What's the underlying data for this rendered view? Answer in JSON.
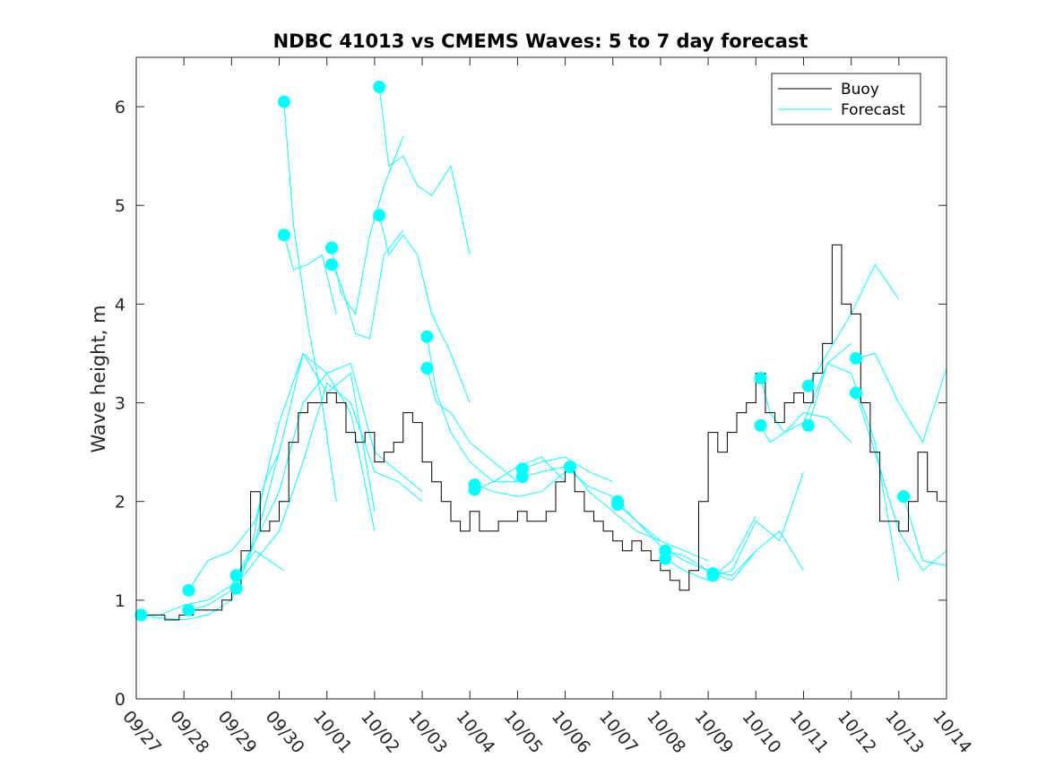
{
  "chart_data": {
    "type": "line",
    "title": "NDBC 41013 vs CMEMS Waves: 5 to 7 day forecast",
    "xlabel": "",
    "ylabel": "Wave height, m",
    "xlim": [
      0,
      17
    ],
    "ylim": [
      0,
      6.5
    ],
    "x_ticks": [
      0,
      1,
      2,
      3,
      4,
      5,
      6,
      7,
      8,
      9,
      10,
      11,
      12,
      13,
      14,
      15,
      16,
      17
    ],
    "x_tick_labels": [
      "09/27",
      "09/28",
      "09/29",
      "09/30",
      "10/01",
      "10/02",
      "10/03",
      "10/04",
      "10/05",
      "10/06",
      "10/07",
      "10/08",
      "10/09",
      "10/10",
      "10/11",
      "10/12",
      "10/13",
      "10/14"
    ],
    "y_ticks": [
      0,
      1,
      2,
      3,
      4,
      5,
      6
    ],
    "y_tick_labels": [
      "0",
      "1",
      "2",
      "3",
      "4",
      "5",
      "6"
    ],
    "legend": {
      "placement": "top-right",
      "entries": [
        {
          "label": "Buoy",
          "color": "#000000"
        },
        {
          "label": "Forecast",
          "color": "#00ffff"
        }
      ]
    },
    "colors": {
      "buoy": "#000000",
      "forecast": "#00ffff"
    },
    "buoy": {
      "name": "Buoy",
      "x": [
        0,
        0.3,
        0.6,
        0.9,
        1.2,
        1.5,
        1.8,
        2.0,
        2.2,
        2.4,
        2.6,
        2.8,
        3.0,
        3.2,
        3.4,
        3.6,
        3.8,
        4.0,
        4.2,
        4.4,
        4.6,
        4.8,
        5.0,
        5.2,
        5.4,
        5.6,
        5.8,
        6.0,
        6.2,
        6.4,
        6.6,
        6.8,
        7.0,
        7.2,
        7.4,
        7.6,
        7.8,
        8.0,
        8.2,
        8.4,
        8.6,
        8.8,
        9.0,
        9.2,
        9.4,
        9.6,
        9.8,
        10.0,
        10.2,
        10.4,
        10.6,
        10.8,
        11.0,
        11.2,
        11.4,
        11.6,
        11.8,
        12.0,
        12.2,
        12.4,
        12.6,
        12.8,
        13.0,
        13.2,
        13.4,
        13.6,
        13.8,
        14.0,
        14.2,
        14.4,
        14.6,
        14.8,
        15.0,
        15.2,
        15.4,
        15.6,
        15.8,
        16.0,
        16.2,
        16.4,
        16.6,
        16.8
      ],
      "values": [
        0.85,
        0.85,
        0.8,
        0.85,
        0.9,
        0.9,
        1.0,
        1.1,
        1.5,
        2.1,
        1.7,
        1.8,
        2.0,
        2.6,
        2.9,
        3.0,
        3.0,
        3.1,
        3.0,
        2.7,
        2.6,
        2.7,
        2.4,
        2.5,
        2.6,
        2.9,
        2.8,
        2.4,
        2.2,
        2.0,
        1.8,
        1.7,
        1.9,
        1.7,
        1.7,
        1.8,
        1.8,
        1.9,
        1.8,
        1.8,
        1.9,
        2.2,
        2.3,
        2.1,
        1.9,
        1.8,
        1.7,
        1.6,
        1.5,
        1.6,
        1.5,
        1.4,
        1.3,
        1.2,
        1.1,
        1.3,
        2.0,
        2.7,
        2.5,
        2.7,
        2.9,
        3.0,
        3.3,
        2.9,
        2.8,
        3.0,
        3.1,
        3.0,
        3.3,
        3.6,
        4.6,
        4.0,
        3.9,
        3.0,
        2.5,
        1.8,
        1.8,
        1.7,
        2.0,
        2.5,
        2.1,
        2.0
      ]
    },
    "forecast": {
      "name": "Forecast",
      "series": [
        {
          "x": [
            0.1,
            0.5,
            1.0,
            1.5,
            2.0,
            2.5,
            3.0,
            3.5,
            4.0,
            4.5,
            5.0
          ],
          "values": [
            0.85,
            0.85,
            0.95,
            1.0,
            1.15,
            1.6,
            2.1,
            3.0,
            3.3,
            2.9,
            1.7
          ]
        },
        {
          "x": [
            0.1,
            0.5,
            1.0,
            1.5,
            2.0,
            2.5,
            3.0,
            3.5,
            4.0,
            4.5,
            5.0
          ],
          "values": [
            0.85,
            0.82,
            0.8,
            0.85,
            1.0,
            1.6,
            2.5,
            3.5,
            3.1,
            3.3,
            1.9
          ]
        },
        {
          "x": [
            1.1,
            1.5,
            2.0,
            2.5,
            3.0,
            3.5,
            4.0,
            4.5,
            5.0,
            5.5,
            6.0
          ],
          "values": [
            1.1,
            1.4,
            1.5,
            1.8,
            2.8,
            3.5,
            3.3,
            3.4,
            2.5,
            2.3,
            2.1
          ]
        },
        {
          "x": [
            1.1,
            1.5,
            2.0,
            2.5,
            3.0,
            3.5,
            4.0,
            4.5,
            5.0,
            5.5,
            6.0
          ],
          "values": [
            0.9,
            0.95,
            1.1,
            1.4,
            1.7,
            2.4,
            3.2,
            3.0,
            2.3,
            2.2,
            2.0
          ]
        },
        {
          "x": [
            2.1,
            2.5,
            2.8,
            3.1
          ],
          "values": [
            1.25,
            1.5,
            1.4,
            1.3
          ]
        },
        {
          "x": [
            2.1,
            2.4,
            2.7,
            3.0
          ],
          "values": [
            1.12,
            1.5,
            2.2,
            2.5
          ]
        },
        {
          "x": [
            3.1,
            3.3,
            3.6,
            3.9,
            4.2
          ],
          "values": [
            6.05,
            4.8,
            3.8,
            3.0,
            2.0
          ]
        },
        {
          "x": [
            3.1,
            3.3,
            3.6,
            3.9,
            4.2
          ],
          "values": [
            4.7,
            4.35,
            4.4,
            4.5,
            3.9
          ]
        },
        {
          "x": [
            4.1,
            4.3,
            4.6,
            4.9,
            5.2,
            5.6
          ],
          "values": [
            4.57,
            4.1,
            3.9,
            4.7,
            5.2,
            5.7
          ]
        },
        {
          "x": [
            4.1,
            4.3,
            4.6,
            4.9,
            5.2,
            5.6
          ],
          "values": [
            4.4,
            4.2,
            3.7,
            3.65,
            4.5,
            4.75
          ]
        },
        {
          "x": [
            5.1,
            5.3,
            5.6,
            5.9,
            6.2,
            6.6,
            7.0
          ],
          "values": [
            6.2,
            5.4,
            5.5,
            5.2,
            5.1,
            5.4,
            4.5
          ]
        },
        {
          "x": [
            5.1,
            5.3,
            5.6,
            5.9,
            6.2,
            6.6,
            7.0
          ],
          "values": [
            4.9,
            4.5,
            4.7,
            4.5,
            3.9,
            3.5,
            3.0
          ]
        },
        {
          "x": [
            6.1,
            6.3,
            6.6,
            7.0,
            7.5,
            8.0
          ],
          "values": [
            3.67,
            3.1,
            2.7,
            2.4,
            2.2,
            2.2
          ]
        },
        {
          "x": [
            6.1,
            6.3,
            6.6,
            7.0,
            7.5,
            8.0
          ],
          "values": [
            3.35,
            3.0,
            2.9,
            2.6,
            2.4,
            2.2
          ]
        },
        {
          "x": [
            7.1,
            7.5,
            8.0,
            8.5,
            9.0
          ],
          "values": [
            2.17,
            2.1,
            2.05,
            2.1,
            2.3
          ]
        },
        {
          "x": [
            7.1,
            7.5,
            8.0,
            8.5,
            9.0
          ],
          "values": [
            2.12,
            2.2,
            2.35,
            2.45,
            2.2
          ]
        },
        {
          "x": [
            8.1,
            8.5,
            9.0,
            9.5,
            10.0
          ],
          "values": [
            2.33,
            2.4,
            2.45,
            2.3,
            2.2
          ]
        },
        {
          "x": [
            8.1,
            8.5,
            9.0,
            9.5,
            10.0
          ],
          "values": [
            2.25,
            2.3,
            2.35,
            2.15,
            2.05
          ]
        },
        {
          "x": [
            9.1,
            9.5,
            10.0,
            10.5,
            11.0
          ],
          "values": [
            2.35,
            2.1,
            1.9,
            1.7,
            1.6
          ]
        },
        {
          "x": [
            10.1,
            10.5,
            11.0,
            11.5,
            12.0
          ],
          "values": [
            1.97,
            1.8,
            1.6,
            1.5,
            1.4
          ]
        },
        {
          "x": [
            10.1,
            10.5,
            11.0,
            11.5,
            12.0
          ],
          "values": [
            2.0,
            1.8,
            1.55,
            1.4,
            1.3
          ]
        },
        {
          "x": [
            11.1,
            11.5,
            12.0,
            12.5,
            13.0
          ],
          "values": [
            1.5,
            1.45,
            1.3,
            1.25,
            1.5
          ]
        },
        {
          "x": [
            11.1,
            11.5,
            12.0,
            12.5,
            13.0
          ],
          "values": [
            1.42,
            1.3,
            1.2,
            1.4,
            1.85
          ]
        },
        {
          "x": [
            12.1,
            12.5,
            13.0,
            13.5,
            14.0
          ],
          "values": [
            1.25,
            1.3,
            1.8,
            1.6,
            2.3
          ]
        },
        {
          "x": [
            12.1,
            12.5,
            13.0,
            13.5,
            14.0
          ],
          "values": [
            1.27,
            1.2,
            1.5,
            1.7,
            1.3
          ]
        },
        {
          "x": [
            13.1,
            13.3,
            13.6,
            14.0,
            14.5,
            15.0
          ],
          "values": [
            3.25,
            2.9,
            2.7,
            2.8,
            3.4,
            3.6
          ]
        },
        {
          "x": [
            13.1,
            13.3,
            13.6,
            14.0,
            14.5,
            15.0
          ],
          "values": [
            2.77,
            2.6,
            2.7,
            2.9,
            2.85,
            2.6
          ]
        },
        {
          "x": [
            14.1,
            14.5,
            15.0,
            15.5,
            16.0
          ],
          "values": [
            3.17,
            3.5,
            3.9,
            4.4,
            4.05
          ]
        },
        {
          "x": [
            14.1,
            14.5,
            15.0,
            15.5,
            16.0
          ],
          "values": [
            2.77,
            3.4,
            3.3,
            2.6,
            1.2
          ]
        },
        {
          "x": [
            15.1,
            15.5,
            16.0,
            16.5,
            17.0
          ],
          "values": [
            3.45,
            3.5,
            3.0,
            2.6,
            3.35
          ]
        },
        {
          "x": [
            15.1,
            15.5,
            16.0,
            16.5,
            17.0
          ],
          "values": [
            3.1,
            2.5,
            1.7,
            1.3,
            1.5
          ]
        },
        {
          "x": [
            16.1,
            16.5,
            17.0
          ],
          "values": [
            2.05,
            1.4,
            1.35
          ]
        }
      ]
    }
  }
}
